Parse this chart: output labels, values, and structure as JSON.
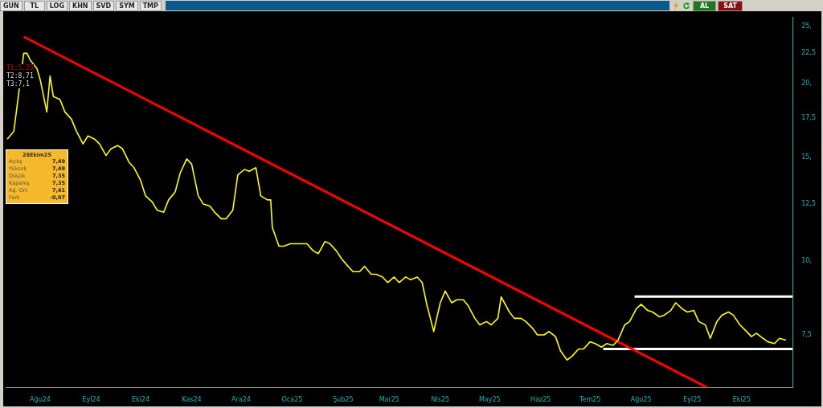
{
  "chart_data": {
    "type": "line",
    "xlim": [
      "2024-07-11",
      "2025-11-01"
    ],
    "xticks": [
      {
        "value": "2024-08-01",
        "label": "Ağu24"
      },
      {
        "value": "2024-09-01",
        "label": "Eyl24"
      },
      {
        "value": "2024-10-01",
        "label": "Eki24"
      },
      {
        "value": "2024-11-01",
        "label": "Kas24"
      },
      {
        "value": "2024-12-01",
        "label": "Ara24"
      },
      {
        "value": "2025-01-01",
        "label": "Oca25"
      },
      {
        "value": "2025-02-01",
        "label": "Şub25"
      },
      {
        "value": "2025-03-01",
        "label": "Mar25"
      },
      {
        "value": "2025-04-01",
        "label": "Nis25"
      },
      {
        "value": "2025-05-01",
        "label": "May25"
      },
      {
        "value": "2025-06-01",
        "label": "Haz25"
      },
      {
        "value": "2025-07-01",
        "label": "Tem25"
      },
      {
        "value": "2025-08-01",
        "label": "Ağu25"
      },
      {
        "value": "2025-09-01",
        "label": "Eyl25"
      },
      {
        "value": "2025-10-01",
        "label": "Eki25"
      }
    ],
    "log": "y",
    "ylim": [
      6.11,
      25.87
    ],
    "yticks": [
      {
        "value": 7.5,
        "label": "7,5"
      },
      {
        "value": 10,
        "label": "10,"
      },
      {
        "value": 12.5,
        "label": "12,5"
      },
      {
        "value": 15,
        "label": "15,"
      },
      {
        "value": 17.5,
        "label": "17,5"
      },
      {
        "value": 20,
        "label": "20,"
      },
      {
        "value": 22.5,
        "label": "22,5"
      },
      {
        "value": 25,
        "label": "25,"
      }
    ],
    "grid": false,
    "legend": false,
    "marker": "none",
    "series": [
      {
        "type": "line",
        "color": "#ffff00",
        "x": [
          "2024-07-12",
          "2024-07-16",
          "2024-07-19",
          "2024-07-22",
          "2024-07-24",
          "2024-07-26",
          "2024-07-30",
          "2024-08-01",
          "2024-08-05",
          "2024-08-07",
          "2024-08-09",
          "2024-08-13",
          "2024-08-16",
          "2024-08-20",
          "2024-08-23",
          "2024-08-27",
          "2024-08-30",
          "2024-09-03",
          "2024-09-06",
          "2024-09-10",
          "2024-09-13",
          "2024-09-17",
          "2024-09-20",
          "2024-09-24",
          "2024-09-27",
          "2024-10-01",
          "2024-10-04",
          "2024-10-08",
          "2024-10-11",
          "2024-10-15",
          "2024-10-18",
          "2024-10-22",
          "2024-10-25",
          "2024-10-29",
          "2024-11-01",
          "2024-11-05",
          "2024-11-08",
          "2024-11-12",
          "2024-11-15",
          "2024-11-19",
          "2024-11-22",
          "2024-11-26",
          "2024-11-29",
          "2024-12-03",
          "2024-12-06",
          "2024-12-10",
          "2024-12-13",
          "2024-12-17",
          "2024-12-19",
          "2024-12-20",
          "2024-12-24",
          "2024-12-27",
          "2024-12-31",
          "2025-01-03",
          "2025-01-07",
          "2025-01-10",
          "2025-01-14",
          "2025-01-17",
          "2025-01-21",
          "2025-01-24",
          "2025-01-28",
          "2025-01-31",
          "2025-02-04",
          "2025-02-07",
          "2025-02-11",
          "2025-02-14",
          "2025-02-18",
          "2025-02-21",
          "2025-02-25",
          "2025-02-28",
          "2025-03-04",
          "2025-03-07",
          "2025-03-11",
          "2025-03-14",
          "2025-03-18",
          "2025-03-21",
          "2025-03-24",
          "2025-03-26",
          "2025-03-28",
          "2025-04-01",
          "2025-04-04",
          "2025-04-08",
          "2025-04-11",
          "2025-04-15",
          "2025-04-18",
          "2025-04-22",
          "2025-04-25",
          "2025-04-29",
          "2025-05-02",
          "2025-05-06",
          "2025-05-08",
          "2025-05-13",
          "2025-05-16",
          "2025-05-20",
          "2025-05-23",
          "2025-05-27",
          "2025-05-30",
          "2025-06-03",
          "2025-06-06",
          "2025-06-10",
          "2025-06-13",
          "2025-06-17",
          "2025-06-20",
          "2025-06-24",
          "2025-06-27",
          "2025-07-01",
          "2025-07-04",
          "2025-07-08",
          "2025-07-11",
          "2025-07-15",
          "2025-07-18",
          "2025-07-22",
          "2025-07-25",
          "2025-07-29",
          "2025-08-01",
          "2025-08-05",
          "2025-08-08",
          "2025-08-12",
          "2025-08-15",
          "2025-08-19",
          "2025-08-22",
          "2025-08-26",
          "2025-08-29",
          "2025-09-02",
          "2025-09-05",
          "2025-09-09",
          "2025-09-12",
          "2025-09-16",
          "2025-09-19",
          "2025-09-23",
          "2025-09-26",
          "2025-09-30",
          "2025-10-03",
          "2025-10-07",
          "2025-10-10",
          "2025-10-14",
          "2025-10-17",
          "2025-10-21",
          "2025-10-24",
          "2025-10-28"
        ],
        "values": [
          16.1,
          16.6,
          19.3,
          22.5,
          22.5,
          21.9,
          21.2,
          20.3,
          17.9,
          20.6,
          19.0,
          18.8,
          17.9,
          17.4,
          16.6,
          15.8,
          16.3,
          16.1,
          15.8,
          15.1,
          15.5,
          15.7,
          15.5,
          14.7,
          14.4,
          13.7,
          12.9,
          12.6,
          12.2,
          12.1,
          12.7,
          13.1,
          14.1,
          14.9,
          14.6,
          12.9,
          12.5,
          12.4,
          12.1,
          11.8,
          11.8,
          12.2,
          14.0,
          14.3,
          14.2,
          14.4,
          12.9,
          12.7,
          12.7,
          11.4,
          10.6,
          10.6,
          10.7,
          10.7,
          10.7,
          10.7,
          10.4,
          10.3,
          10.8,
          10.7,
          10.4,
          10.1,
          9.8,
          9.6,
          9.6,
          9.8,
          9.5,
          9.5,
          9.4,
          9.2,
          9.4,
          9.2,
          9.4,
          9.3,
          9.4,
          9.2,
          8.4,
          8.0,
          7.6,
          8.5,
          8.9,
          8.5,
          8.6,
          8.6,
          8.4,
          8.0,
          7.8,
          7.9,
          7.8,
          8.0,
          8.7,
          8.2,
          8.0,
          8.0,
          7.9,
          7.7,
          7.5,
          7.5,
          7.6,
          7.45,
          7.05,
          6.8,
          6.9,
          7.1,
          7.1,
          7.3,
          7.25,
          7.15,
          7.25,
          7.2,
          7.35,
          7.8,
          7.9,
          8.3,
          8.45,
          8.25,
          8.2,
          8.05,
          8.1,
          8.25,
          8.5,
          8.3,
          8.2,
          8.25,
          7.9,
          7.8,
          7.4,
          7.9,
          8.1,
          8.2,
          8.1,
          7.8,
          7.65,
          7.45,
          7.55,
          7.4,
          7.3,
          7.25,
          7.4,
          7.35
        ]
      },
      {
        "type": "line",
        "color": "#ff0000",
        "x": [
          "2024-07-22",
          "2025-09-10"
        ],
        "values": [
          24.0,
          6.11
        ]
      },
      {
        "type": "line",
        "color": "#ffffff",
        "x": [
          "2025-07-28",
          "2025-11-01"
        ],
        "values": [
          8.71,
          8.71
        ]
      },
      {
        "type": "line",
        "color": "#ffffff",
        "x": [
          "2025-07-09",
          "2025-11-01"
        ],
        "values": [
          7.1,
          7.1
        ]
      }
    ],
    "annotations": [
      "T1:5,25",
      "T2:8,71",
      "T3:7,1",
      "28Ekim25",
      "Açılış",
      "7,49",
      "Yüksek",
      "7,49",
      "Düşük",
      "7,35",
      "Kapanış",
      "7,35",
      "Ağ. Ort",
      "7,41",
      "Fark",
      "-0,07",
      "GUN",
      "TL",
      "LOG",
      "KHN",
      "SVD",
      "SYM",
      "TMP",
      "AL",
      "SAT"
    ]
  }
}
